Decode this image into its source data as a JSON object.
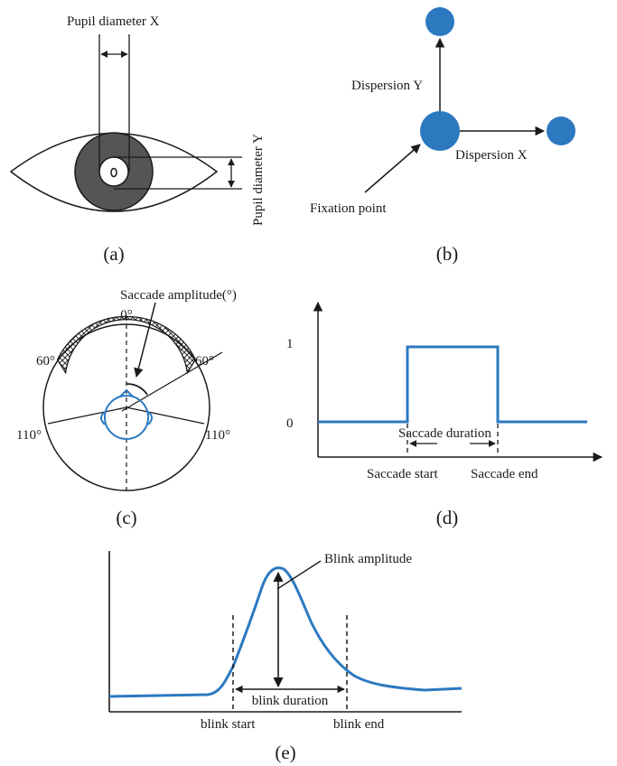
{
  "colors": {
    "blue": "#2c79c0",
    "ink": "#1a1a1a",
    "iris": "#555555"
  },
  "panel_a": {
    "pupil_x_label": "Pupil diameter X",
    "pupil_y_label": "Pupil diameter Y",
    "caption": "(a)"
  },
  "panel_b": {
    "dispersion_y_label": "Dispersion Y",
    "dispersion_x_label": "Dispersion X",
    "fixation_label": "Fixation point",
    "caption": "(b)"
  },
  "panel_c": {
    "amplitude_label": "Saccade amplitude(°)",
    "angle_0": "0°",
    "angle_60_left": "60°",
    "angle_60_right": "60°",
    "angle_110_left": "110°",
    "angle_110_right": "110°",
    "caption": "(c)"
  },
  "panel_d": {
    "y_tick_1": "1",
    "y_tick_0": "0",
    "duration_label": "Saccade duration",
    "start_label": "Saccade start",
    "end_label": "Saccade end",
    "caption": "(d)"
  },
  "panel_e": {
    "amplitude_label": "Blink amplitude",
    "duration_label": "blink duration",
    "start_label": "blink start",
    "end_label": "blink end",
    "caption": "(e)"
  }
}
